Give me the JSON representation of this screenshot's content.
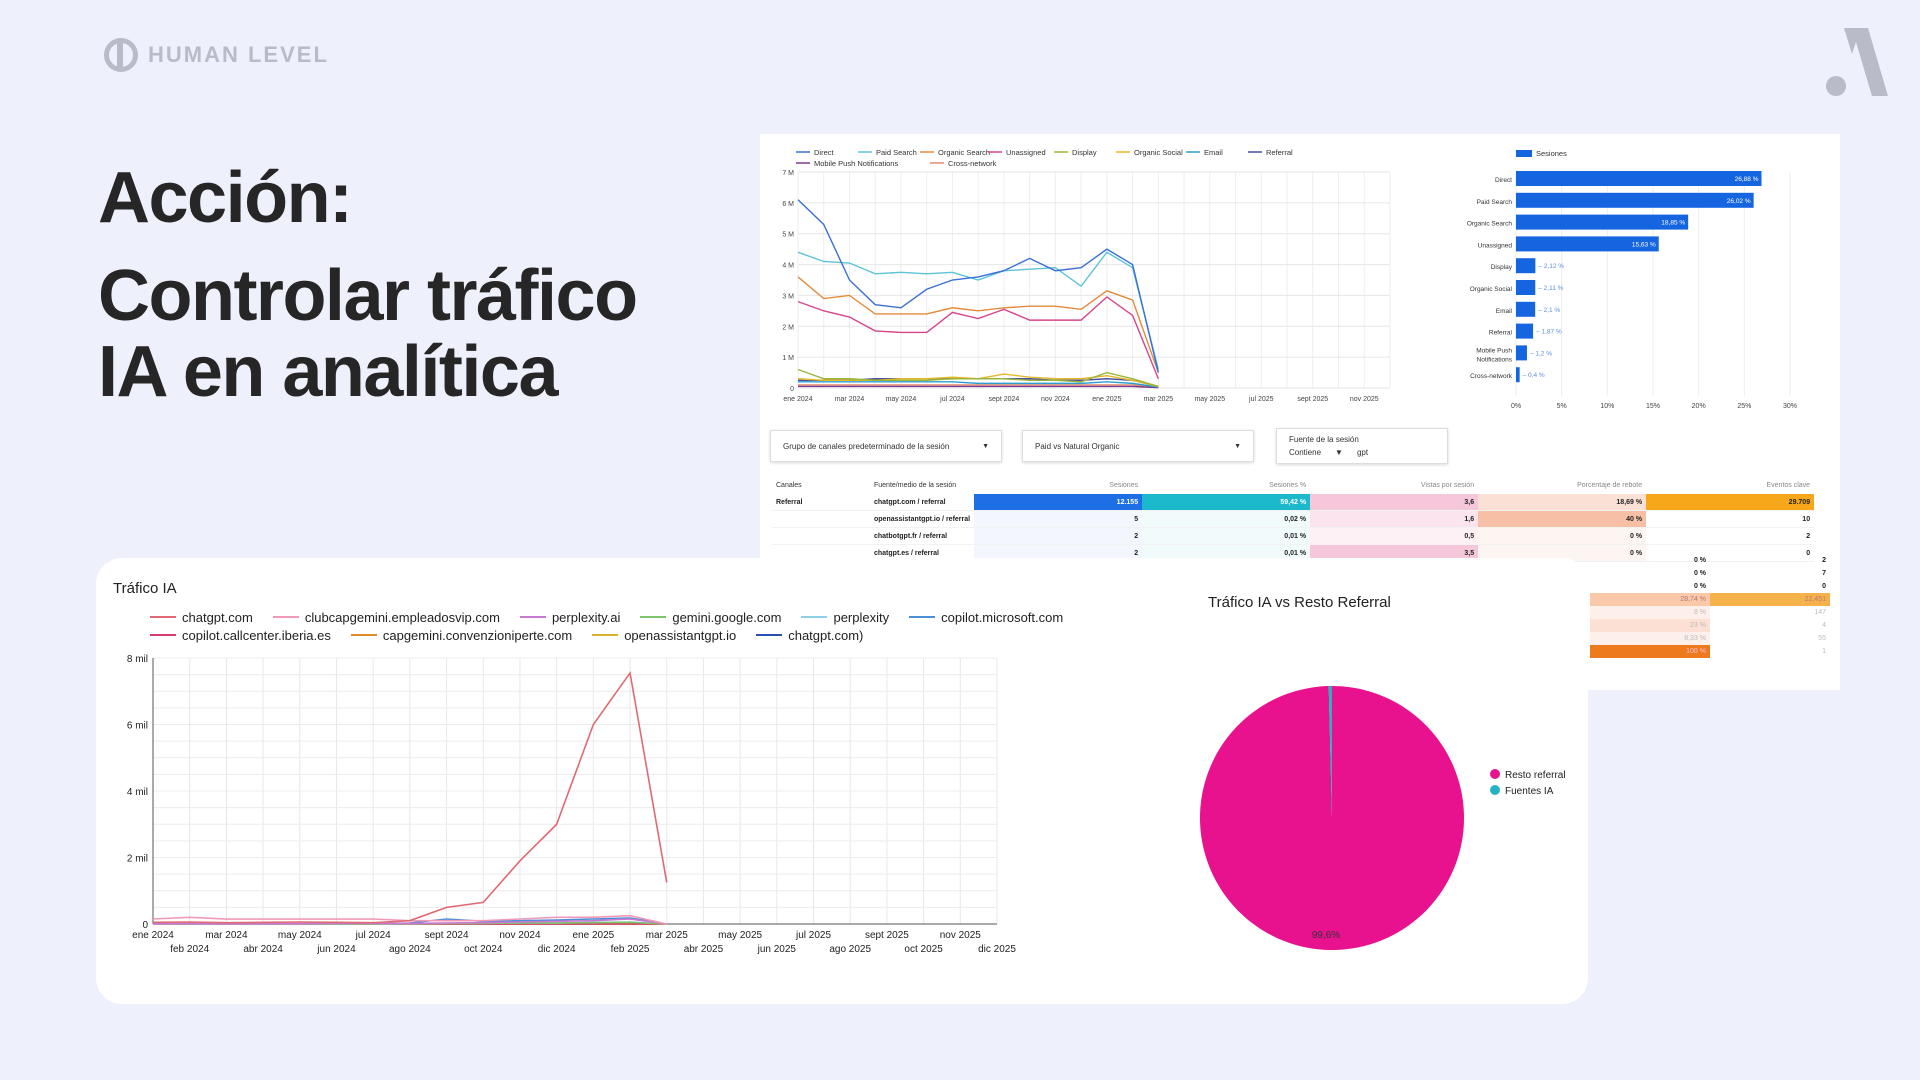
{
  "brand": {
    "name": "HUMAN LEVEL"
  },
  "title": {
    "line1": "Acción:",
    "line2": "Controlar tráfico IA en analítica"
  },
  "top_panel": {
    "filters": {
      "channel_group": "Grupo de canales predeterminado de la sesión",
      "paid_vs_organic": "Paid vs Natural Organic",
      "source_label": "Fuente de la sesión",
      "operator": "Contiene",
      "value": "gpt"
    },
    "table": {
      "headers": [
        "Canales",
        "Fuente/medio de la sesión",
        "Sesiones",
        "Sesiones %",
        "Vistas por sesión",
        "Porcentaje de rebote",
        "Eventos clave"
      ],
      "rows": [
        [
          "Referral",
          "chatgpt.com / referral",
          "12.155",
          "59,42 %",
          "3,6",
          "18,69 %",
          "29.709"
        ],
        [
          "",
          "openassistantgpt.io / referral",
          "5",
          "0,02 %",
          "1,6",
          "40 %",
          "10"
        ],
        [
          "",
          "chatbotgpt.fr / referral",
          "2",
          "0,01 %",
          "0,5",
          "0 %",
          "2"
        ],
        [
          "",
          "chatgpt.es / referral",
          "2",
          "0,01 %",
          "3,5",
          "0 %",
          "0"
        ]
      ],
      "hidden_tail": {
        "bounce": [
          "0 %",
          "0 %",
          "0 %",
          "28,74 %",
          "8 %",
          "23 %",
          "8,33 %",
          "100 %"
        ],
        "events": [
          "2",
          "7",
          "0",
          "22.451",
          "147",
          "4",
          "55",
          "1"
        ]
      }
    }
  },
  "chart_data": [
    {
      "type": "line",
      "title": "",
      "x": [
        "ene 2024",
        "feb 2024",
        "mar 2024",
        "abr 2024",
        "may 2024",
        "jun 2024",
        "jul 2024",
        "ago 2024",
        "sept 2024",
        "oct 2024",
        "nov 2024",
        "dic 2024",
        "ene 2025",
        "feb 2025",
        "mar 2025"
      ],
      "x_ticks": [
        "ene 2024",
        "mar 2024",
        "may 2024",
        "jul 2024",
        "sept 2024",
        "nov 2024",
        "ene 2025",
        "mar 2025",
        "may 2025",
        "jul 2025",
        "sept 2025",
        "nov 2025"
      ],
      "y_ticks": [
        "0",
        "1 M",
        "2 M",
        "3 M",
        "4 M",
        "5 M",
        "6 M",
        "7 M"
      ],
      "ylim": [
        0,
        7000000
      ],
      "series": [
        {
          "name": "Direct",
          "color": "#3b6fd6",
          "values": [
            6100000,
            5300000,
            3500000,
            2700000,
            2600000,
            3200000,
            3500000,
            3600000,
            3800000,
            4200000,
            3800000,
            3900000,
            4500000,
            4000000,
            500000
          ]
        },
        {
          "name": "Paid Search",
          "color": "#5cc3d8",
          "values": [
            4400000,
            4100000,
            4050000,
            3700000,
            3750000,
            3700000,
            3750000,
            3500000,
            3800000,
            3850000,
            3900000,
            3300000,
            4400000,
            3900000,
            600000
          ]
        },
        {
          "name": "Organic Search",
          "color": "#e38b3a",
          "values": [
            3600000,
            2900000,
            3000000,
            2400000,
            2400000,
            2400000,
            2600000,
            2500000,
            2600000,
            2650000,
            2650000,
            2550000,
            3150000,
            2850000,
            500000
          ]
        },
        {
          "name": "Unassigned",
          "color": "#d6458a",
          "values": [
            2800000,
            2500000,
            2300000,
            1850000,
            1800000,
            1800000,
            2450000,
            2250000,
            2550000,
            2200000,
            2200000,
            2200000,
            2950000,
            2350000,
            300000
          ]
        },
        {
          "name": "Display",
          "color": "#9ab53a",
          "values": [
            600000,
            300000,
            300000,
            250000,
            250000,
            250000,
            300000,
            300000,
            300000,
            250000,
            250000,
            200000,
            500000,
            300000,
            50000
          ]
        },
        {
          "name": "Organic Social",
          "color": "#e5b82a",
          "values": [
            300000,
            250000,
            250000,
            250000,
            300000,
            300000,
            350000,
            300000,
            450000,
            350000,
            300000,
            300000,
            400000,
            250000,
            50000
          ]
        },
        {
          "name": "Email",
          "color": "#2d9fcf",
          "values": [
            200000,
            200000,
            200000,
            200000,
            200000,
            200000,
            200000,
            150000,
            150000,
            150000,
            150000,
            150000,
            200000,
            150000,
            30000
          ]
        },
        {
          "name": "Referral",
          "color": "#4b4f9e",
          "values": [
            250000,
            250000,
            250000,
            300000,
            300000,
            300000,
            300000,
            300000,
            300000,
            300000,
            250000,
            250000,
            300000,
            250000,
            50000
          ]
        },
        {
          "name": "Mobile Push Notifications",
          "color": "#7c3b8c",
          "values": [
            50000,
            50000,
            50000,
            50000,
            50000,
            50000,
            50000,
            50000,
            50000,
            50000,
            50000,
            50000,
            50000,
            50000,
            10000
          ]
        },
        {
          "name": "Cross-network",
          "color": "#e48a6a",
          "values": [
            100000,
            100000,
            100000,
            100000,
            100000,
            100000,
            100000,
            100000,
            100000,
            100000,
            100000,
            100000,
            100000,
            100000,
            20000
          ]
        }
      ]
    },
    {
      "type": "bar",
      "orientation": "horizontal",
      "title": "",
      "legend": "Sesiones",
      "color": "#1565e0",
      "categories": [
        "Direct",
        "Paid Search",
        "Organic Search",
        "Unassigned",
        "Display",
        "Organic Social",
        "Email",
        "Referral",
        "Mobile Push Notifications",
        "Cross-network"
      ],
      "values": [
        26.88,
        26.02,
        18.85,
        15.63,
        2.12,
        2.11,
        2.1,
        1.87,
        1.2,
        0.4
      ],
      "labels": [
        "26,88 %",
        "26,02 %",
        "18,85 %",
        "15,63 %",
        "2,12 %",
        "2,11 %",
        "2,1 %",
        "1,87 %",
        "1,2 %",
        "0,4 %"
      ],
      "x_ticks": [
        "0%",
        "5%",
        "10%",
        "15%",
        "20%",
        "25%",
        "30%"
      ],
      "xlim": [
        0,
        30
      ]
    },
    {
      "type": "line",
      "title": "Tráfico IA",
      "x": [
        "ene 2024",
        "feb 2024",
        "mar 2024",
        "abr 2024",
        "may 2024",
        "jun 2024",
        "jul 2024",
        "ago 2024",
        "sept 2024",
        "oct 2024",
        "nov 2024",
        "dic 2024",
        "ene 2025",
        "feb 2025",
        "mar 2025"
      ],
      "x_ticks_top": [
        "ene 2024",
        "mar 2024",
        "may 2024",
        "jul 2024",
        "sept 2024",
        "nov 2024",
        "ene 2025",
        "mar 2025",
        "may 2025",
        "jul 2025",
        "sept 2025",
        "nov 2025"
      ],
      "x_ticks_bottom": [
        "feb 2024",
        "abr 2024",
        "jun 2024",
        "ago 2024",
        "oct 2024",
        "dic 2024",
        "feb 2025",
        "abr 2025",
        "jun 2025",
        "ago 2025",
        "oct 2025",
        "dic 2025"
      ],
      "y_ticks": [
        "0",
        "2 mil",
        "4 mil",
        "6 mil",
        "8 mil"
      ],
      "ylim": [
        0,
        8000
      ],
      "series": [
        {
          "name": "chatgpt.com",
          "color": "#e06a73",
          "values": [
            50,
            60,
            40,
            50,
            60,
            50,
            40,
            100,
            500,
            650,
            1900,
            3000,
            6000,
            7550,
            1250
          ]
        },
        {
          "name": "clubcapgemini.empleadosvip.com",
          "color": "#f09ab8",
          "values": [
            150,
            200,
            150,
            150,
            150,
            150,
            150,
            100,
            100,
            100,
            150,
            200,
            200,
            250,
            0
          ]
        },
        {
          "name": "perplexity.ai",
          "color": "#c87ad0",
          "values": [
            10,
            10,
            10,
            10,
            10,
            20,
            20,
            20,
            30,
            40,
            60,
            80,
            100,
            150,
            0
          ]
        },
        {
          "name": "gemini.google.com",
          "color": "#7dc46a",
          "values": [
            10,
            10,
            10,
            10,
            10,
            10,
            10,
            20,
            20,
            20,
            30,
            30,
            40,
            50,
            0
          ]
        },
        {
          "name": "perplexity",
          "color": "#8fd0e8",
          "values": [
            0,
            0,
            0,
            0,
            0,
            0,
            0,
            10,
            20,
            20,
            30,
            30,
            50,
            60,
            0
          ]
        },
        {
          "name": "copilot.microsoft.com",
          "color": "#4b8fd6",
          "values": [
            10,
            10,
            10,
            10,
            10,
            20,
            20,
            30,
            150,
            80,
            100,
            120,
            150,
            180,
            0
          ]
        },
        {
          "name": "copilot.callcenter.iberia.es",
          "color": "#d63a6e",
          "values": [
            0,
            0,
            0,
            0,
            0,
            0,
            0,
            0,
            0,
            0,
            0,
            0,
            0,
            0,
            0
          ]
        },
        {
          "name": "capgemini.convenzioniperte.com",
          "color": "#e08a2e",
          "values": [
            0,
            0,
            0,
            0,
            0,
            0,
            0,
            0,
            0,
            0,
            0,
            0,
            0,
            0,
            0
          ]
        },
        {
          "name": "openassistantgpt.io",
          "color": "#d9b02a",
          "values": [
            0,
            0,
            0,
            0,
            0,
            0,
            0,
            0,
            0,
            0,
            0,
            0,
            0,
            0,
            0
          ]
        },
        {
          "name": "chatgpt.com)",
          "color": "#2b4fb0",
          "values": [
            0,
            0,
            0,
            0,
            0,
            0,
            0,
            0,
            0,
            0,
            0,
            0,
            0,
            0,
            0
          ]
        }
      ]
    },
    {
      "type": "pie",
      "title": "Tráfico IA vs Resto Referral",
      "slices": [
        {
          "name": "Resto referral",
          "value": 99.6,
          "color": "#e8118e"
        },
        {
          "name": "Fuentes IA",
          "value": 0.4,
          "color": "#25b3c4"
        }
      ],
      "label": "99,6%"
    }
  ]
}
